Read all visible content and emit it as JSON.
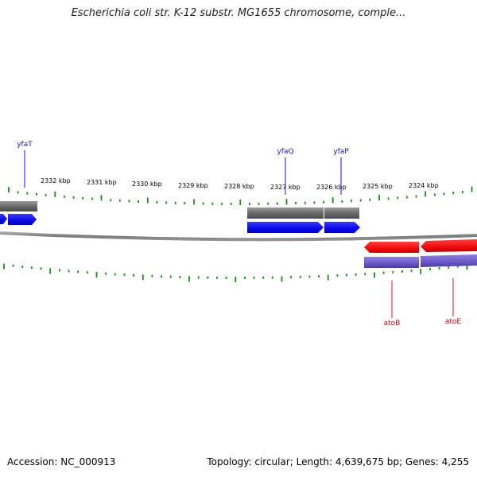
{
  "title": "Escherichia coli str. K-12 substr. MG1655 chromosome, comple...",
  "footer": {
    "accession": "Accession: NC_000913",
    "summary": "Topology: circular; Length: 4,639,675 bp; Genes: 4,255"
  },
  "colors": {
    "tick": "#1e8a1e",
    "forward_gene": "#1010ee",
    "reverse_gene": "#ee1010",
    "forward_label": "#1a1aa0",
    "reverse_label": "#b01010",
    "forward_cds": "#6b6b6b",
    "reverse_cds": "#6e5cc4",
    "backbone": "#888888"
  },
  "ruler": {
    "unit": "kbp",
    "labels": [
      "2332 kbp",
      "2331 kbp",
      "2330 kbp",
      "2329 kbp",
      "2328 kbp",
      "2327 kbp",
      "2326 kbp",
      "2325 kbp",
      "2324 kbp"
    ]
  },
  "genes": [
    {
      "name": "yfaT",
      "strand": "forward"
    },
    {
      "name": "yfaQ",
      "strand": "forward"
    },
    {
      "name": "yfaP",
      "strand": "forward"
    },
    {
      "name": "atoB",
      "strand": "reverse"
    },
    {
      "name": "atoE",
      "strand": "reverse"
    }
  ]
}
